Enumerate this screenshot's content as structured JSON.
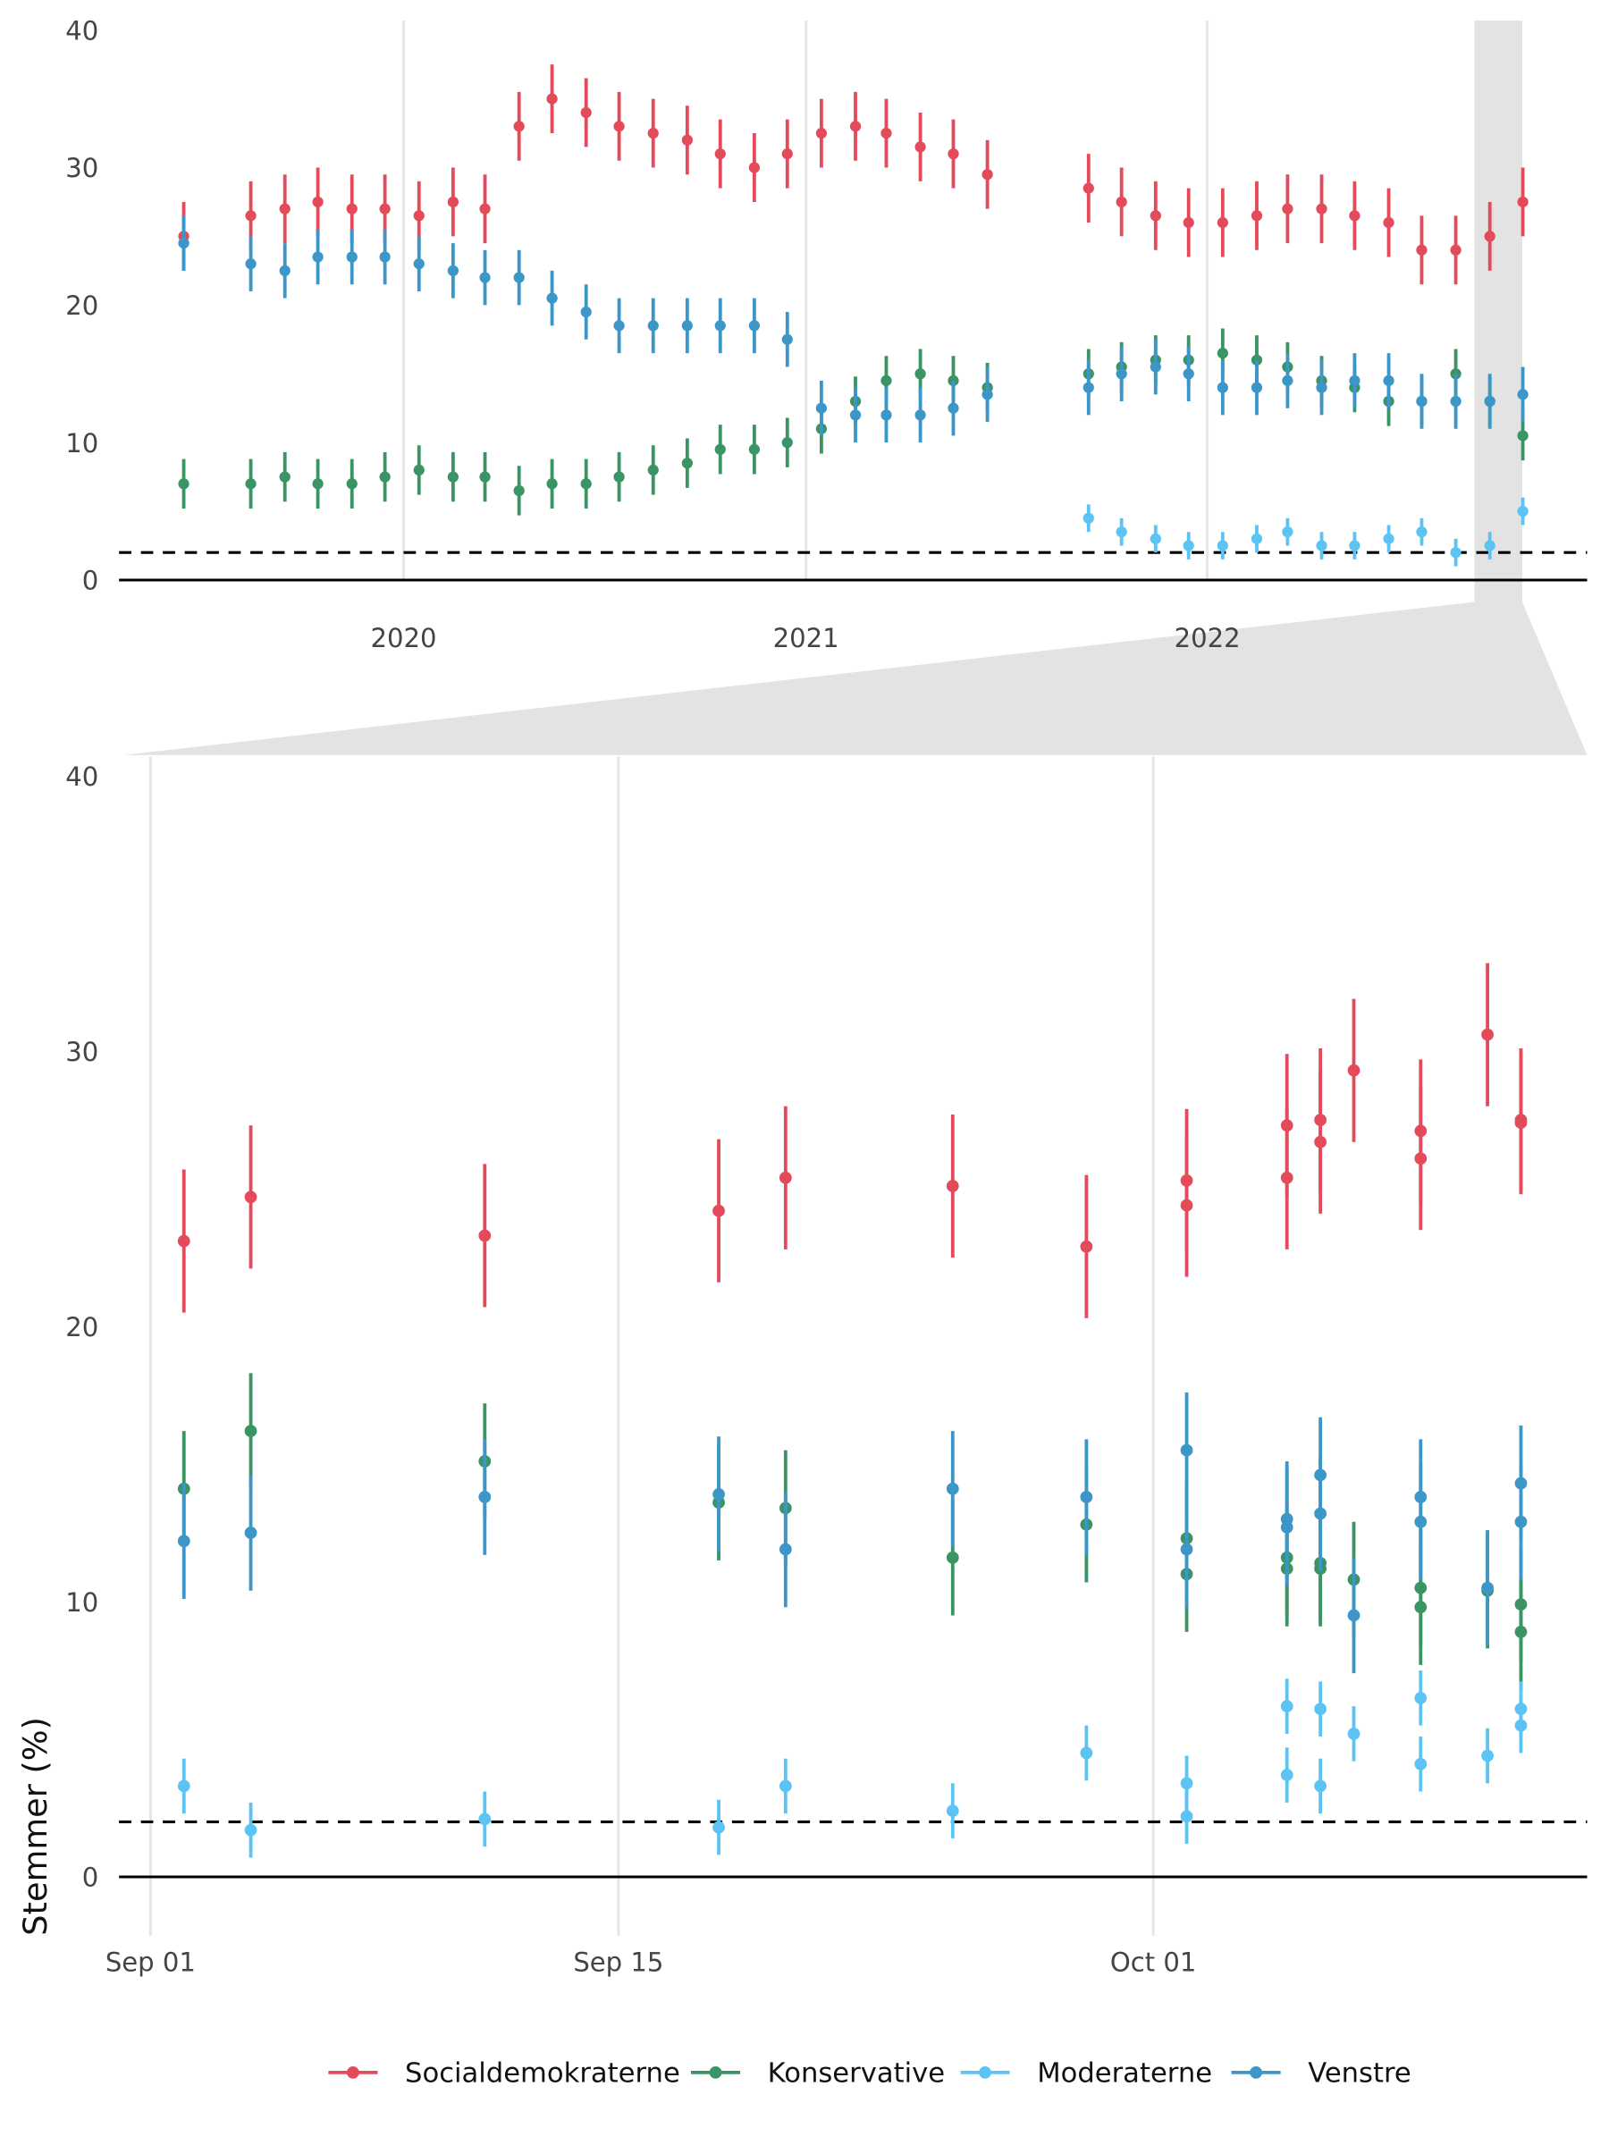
{
  "chart_data": [
    {
      "type": "scatter",
      "panel": "overview",
      "ylim": [
        0,
        40
      ],
      "yticks": [
        "0",
        "10",
        "20",
        "30",
        "40"
      ],
      "xticks": [
        "2020",
        "2021",
        "2022"
      ],
      "xtick_dates": [
        "2020-01-01",
        "2021-01-01",
        "2022-01-01"
      ],
      "threshold": 2,
      "highlight_range": [
        "2022-09-01",
        "2022-10-12"
      ],
      "months": [
        "2019-06",
        "2019-08",
        "2019-09",
        "2019-10",
        "2019-11",
        "2019-12",
        "2020-01",
        "2020-02",
        "2020-03",
        "2020-04",
        "2020-05",
        "2020-06",
        "2020-07",
        "2020-08",
        "2020-09",
        "2020-10",
        "2020-11",
        "2020-12",
        "2021-01",
        "2021-02",
        "2021-03",
        "2021-04",
        "2021-05",
        "2021-06",
        "2021-09",
        "2021-10",
        "2021-11",
        "2021-12",
        "2022-01",
        "2022-02",
        "2022-03",
        "2022-04",
        "2022-05",
        "2022-06",
        "2022-07",
        "2022-08",
        "2022-09",
        "2022-10"
      ],
      "series": [
        {
          "name": "Socialdemokraterne",
          "color": "#e34a5a",
          "moe": 2.5,
          "values": [
            25,
            26.5,
            27,
            27.5,
            27,
            27,
            26.5,
            27.5,
            27,
            33,
            35,
            34,
            33,
            32.5,
            32,
            31,
            30,
            31,
            32.5,
            33,
            32.5,
            31.5,
            31,
            29.5,
            28.5,
            27.5,
            26.5,
            26,
            26,
            26.5,
            27,
            27,
            26.5,
            26,
            24,
            24,
            25,
            27.5
          ]
        },
        {
          "name": "Konservative",
          "color": "#3a9463",
          "moe": 1.8,
          "values": [
            7,
            7,
            7.5,
            7,
            7,
            7.5,
            8,
            7.5,
            7.5,
            6.5,
            7,
            7,
            7.5,
            8,
            8.5,
            9.5,
            9.5,
            10,
            11,
            13,
            14.5,
            15,
            14.5,
            14,
            15,
            15.5,
            16,
            16,
            16.5,
            16,
            15.5,
            14.5,
            14,
            13,
            13,
            15,
            13,
            10.5
          ]
        },
        {
          "name": "Moderaterne",
          "color": "#5bc4f5",
          "moe": 1.0,
          "values": [
            null,
            null,
            null,
            null,
            null,
            null,
            null,
            null,
            null,
            null,
            null,
            null,
            null,
            null,
            null,
            null,
            null,
            null,
            null,
            null,
            null,
            null,
            null,
            null,
            4.5,
            3.5,
            3,
            2.5,
            2.5,
            3,
            3.5,
            2.5,
            2.5,
            3,
            3.5,
            2,
            2.5,
            5
          ]
        },
        {
          "name": "Venstre",
          "color": "#3d96c8",
          "moe": 2.0,
          "values": [
            24.5,
            23,
            22.5,
            23.5,
            23.5,
            23.5,
            23,
            22.5,
            22,
            22,
            20.5,
            19.5,
            18.5,
            18.5,
            18.5,
            18.5,
            18.5,
            17.5,
            12.5,
            12,
            12,
            12,
            12.5,
            13.5,
            14,
            15,
            15.5,
            15,
            14,
            14,
            14.5,
            14,
            14.5,
            14.5,
            13,
            13,
            13,
            13.5
          ]
        }
      ]
    },
    {
      "type": "scatter",
      "panel": "zoom",
      "ylabel": "Stemmer (%)",
      "ylim": [
        0,
        40
      ],
      "yticks": [
        "0",
        "10",
        "20",
        "30",
        "40"
      ],
      "xticks": [
        "Sep 01",
        "Sep 15",
        "Oct 01"
      ],
      "xtick_dates": [
        "2022-09-01",
        "2022-09-15",
        "2022-10-01"
      ],
      "threshold": 2,
      "dates": [
        "2022-09-02",
        "2022-09-04",
        "2022-09-11",
        "2022-09-18",
        "2022-09-20",
        "2022-09-25",
        "2022-09-29",
        "2022-10-02",
        "2022-10-02",
        "2022-10-05",
        "2022-10-05",
        "2022-10-06",
        "2022-10-06",
        "2022-10-07",
        "2022-10-09",
        "2022-10-09",
        "2022-10-11",
        "2022-10-12",
        "2022-10-12"
      ],
      "series": [
        {
          "name": "Socialdemokraterne",
          "color": "#e34a5a",
          "moe": 2.6,
          "values": [
            23.1,
            24.7,
            23.3,
            24.2,
            25.4,
            25.1,
            22.9,
            25.3,
            24.4,
            27.3,
            25.4,
            27.5,
            26.7,
            29.3,
            27.1,
            26.1,
            30.6,
            27.5,
            27.4
          ]
        },
        {
          "name": "Konservative",
          "color": "#3a9463",
          "moe": 2.1,
          "values": [
            14.1,
            16.2,
            15.1,
            13.6,
            13.4,
            11.6,
            12.8,
            12.3,
            11.0,
            11.6,
            11.2,
            11.4,
            11.2,
            10.8,
            10.5,
            9.8,
            10.4,
            9.9,
            8.9
          ]
        },
        {
          "name": "Moderaterne",
          "color": "#5bc4f5",
          "moe": 1.0,
          "values": [
            3.3,
            1.7,
            2.1,
            1.8,
            3.3,
            2.4,
            4.5,
            3.4,
            2.2,
            6.2,
            3.7,
            6.1,
            3.3,
            5.2,
            6.5,
            4.1,
            4.4,
            6.1,
            5.5
          ]
        },
        {
          "name": "Venstre",
          "color": "#3d96c8",
          "moe": 2.1,
          "values": [
            12.2,
            12.5,
            13.8,
            13.9,
            11.9,
            14.1,
            13.8,
            15.5,
            11.9,
            13.0,
            12.7,
            14.6,
            13.2,
            9.5,
            13.8,
            12.9,
            10.5,
            14.3,
            12.9
          ]
        }
      ]
    }
  ],
  "legend": {
    "position": "bottom",
    "items": [
      {
        "label": "Socialdemokraterne",
        "color": "#e34a5a"
      },
      {
        "label": "Konservative",
        "color": "#3a9463"
      },
      {
        "label": "Moderaterne",
        "color": "#5bc4f5"
      },
      {
        "label": "Venstre",
        "color": "#3d96c8"
      }
    ]
  }
}
